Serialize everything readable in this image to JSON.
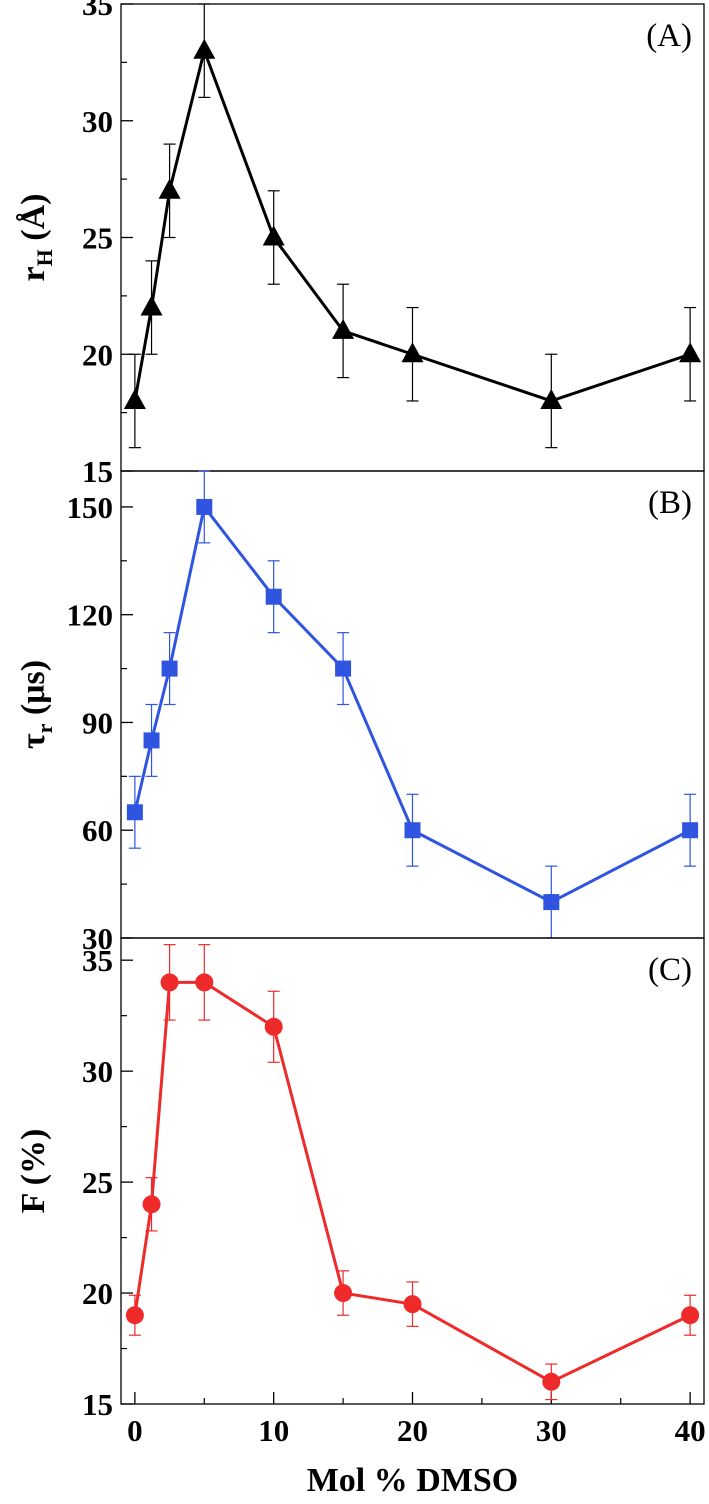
{
  "chart_data": [
    {
      "type": "line",
      "panel_label": "(A)",
      "ylabel": {
        "main": "r",
        "sub": "H",
        "unit": " (Å)"
      },
      "ylim": [
        15,
        35
      ],
      "yticks": [
        15,
        20,
        25,
        30,
        35
      ],
      "ytick_labels": [
        "15",
        "20",
        "25",
        "30",
        "35"
      ],
      "xlim": [
        -1,
        41
      ],
      "series": [
        {
          "color": "#000000",
          "marker": "triangle",
          "x": [
            0,
            1.2,
            2.5,
            5,
            10,
            15,
            20,
            30,
            40
          ],
          "y": [
            18,
            22,
            27,
            33,
            25,
            21,
            20,
            18,
            20
          ],
          "err": [
            2,
            2,
            2,
            2,
            2,
            2,
            2,
            2,
            2
          ]
        }
      ]
    },
    {
      "type": "line",
      "panel_label": "(B)",
      "ylabel": {
        "main": "τ",
        "sub": "r",
        "unit": " (μs)"
      },
      "ylim": [
        30,
        160
      ],
      "yticks": [
        30,
        60,
        90,
        120,
        150
      ],
      "ytick_labels": [
        "30",
        "60",
        "90",
        "120",
        "150"
      ],
      "xlim": [
        -1,
        41
      ],
      "series": [
        {
          "color": "#2f55e0",
          "marker": "square",
          "x": [
            0,
            1.2,
            2.5,
            5,
            10,
            15,
            20,
            30,
            40
          ],
          "y": [
            65,
            85,
            105,
            150,
            125,
            105,
            60,
            40,
            60
          ],
          "err": [
            10,
            10,
            10,
            10,
            10,
            10,
            10,
            10,
            10
          ]
        }
      ]
    },
    {
      "type": "line",
      "panel_label": "(C)",
      "ylabel": {
        "main": "F (%)"
      },
      "ylim": [
        15,
        36
      ],
      "yticks": [
        15,
        20,
        25,
        30,
        35
      ],
      "ytick_labels": [
        "15",
        "20",
        "25",
        "30",
        "35"
      ],
      "xlim": [
        -1,
        41
      ],
      "xticks": [
        0,
        10,
        20,
        30,
        40
      ],
      "xtick_labels": [
        "0",
        "10",
        "20",
        "30",
        "40"
      ],
      "xlabel": "Mol % DMSO",
      "series": [
        {
          "color": "#ee2a2a",
          "marker": "circle",
          "x": [
            0,
            1.2,
            2.5,
            5,
            10,
            15,
            20,
            30,
            40
          ],
          "y": [
            19,
            24,
            34,
            34,
            32,
            20,
            19.5,
            16,
            19
          ],
          "err": [
            0.9,
            1.2,
            1.7,
            1.7,
            1.6,
            1.0,
            1.0,
            0.8,
            0.9
          ]
        }
      ]
    }
  ]
}
